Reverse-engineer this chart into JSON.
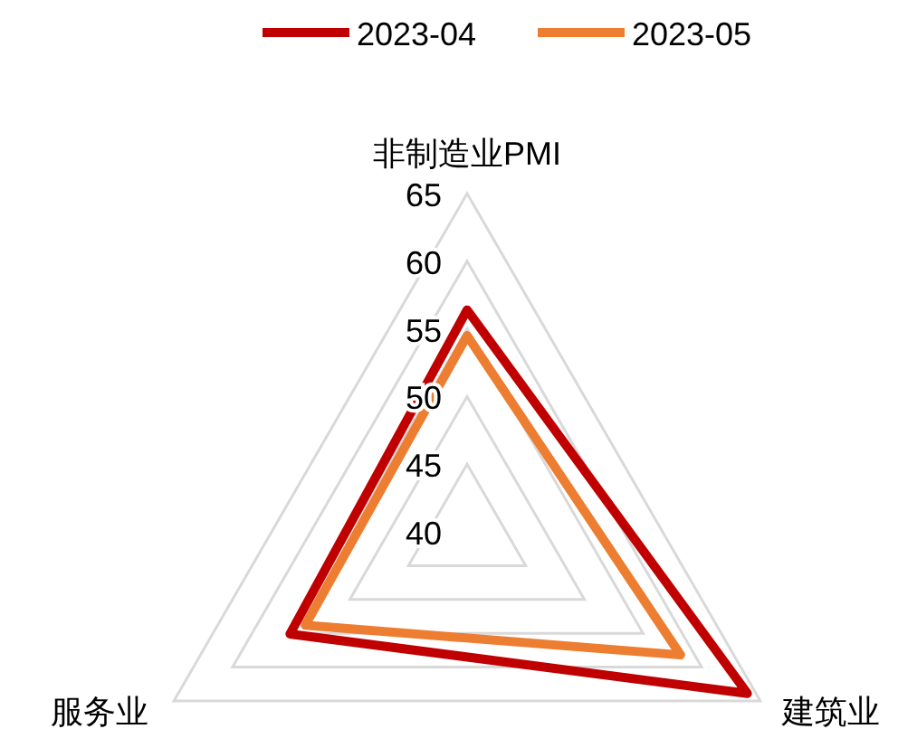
{
  "chart_data": {
    "type": "radar",
    "categories": [
      "非制造业PMI",
      "建筑业",
      "服务业"
    ],
    "ylim": [
      40,
      65
    ],
    "yticks": [
      40,
      45,
      50,
      55,
      60,
      65
    ],
    "legend": "top",
    "grid": true,
    "series": [
      {
        "name": "2023-04",
        "color": "#c00000",
        "values": [
          56.4,
          63.9,
          55.1
        ]
      },
      {
        "name": "2023-05",
        "color": "#ed7d31",
        "values": [
          54.5,
          58.2,
          53.8
        ]
      }
    ]
  }
}
